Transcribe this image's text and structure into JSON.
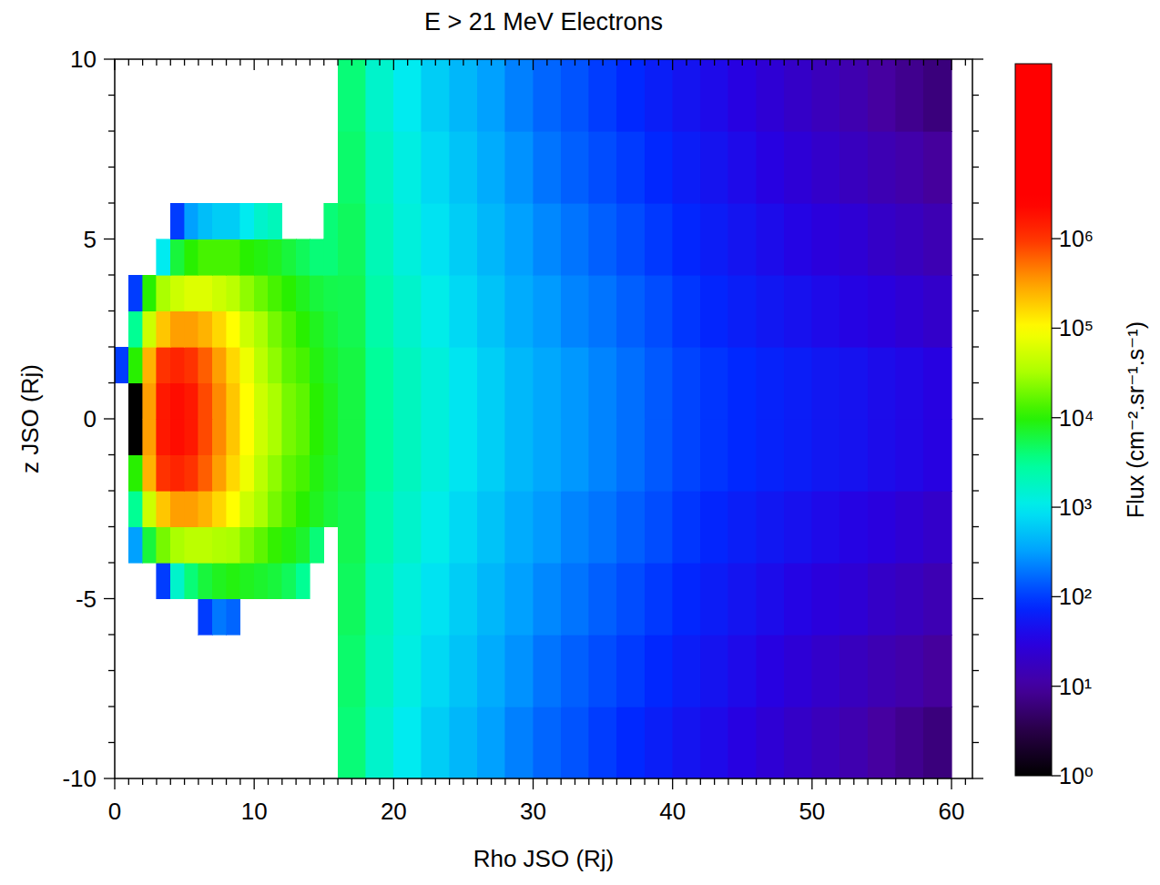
{
  "chart_data": {
    "type": "heatmap",
    "title": "E > 21 MeV Electrons",
    "x_label": "Rho JSO (Rj)",
    "y_label": "z JSO (Rj)",
    "xlim": [
      0,
      61.5
    ],
    "ylim": [
      -10,
      10
    ],
    "xticks": [
      0,
      10,
      20,
      30,
      40,
      50,
      60
    ],
    "yticks": [
      -10,
      -5,
      0,
      5,
      10
    ],
    "x_minor_ticks": [
      1,
      2,
      3,
      4,
      5,
      6,
      7,
      8,
      9,
      11,
      12,
      13,
      14,
      15,
      16,
      17,
      18,
      19,
      21,
      22,
      23,
      24,
      25,
      26,
      27,
      28,
      29,
      31,
      32,
      33,
      34,
      35,
      36,
      37,
      38,
      39,
      41,
      42,
      43,
      44,
      45,
      46,
      47,
      48,
      49,
      51,
      52,
      53,
      54,
      55,
      56,
      57,
      58,
      59,
      61
    ],
    "y_minor_ticks": [
      -9,
      -8,
      -7,
      -6,
      -4,
      -3,
      -2,
      -1,
      1,
      2,
      3,
      4,
      6,
      7,
      8,
      9
    ],
    "colorbar": {
      "label": "Flux (cm⁻².sr⁻¹.s⁻¹)",
      "range": [
        1,
        90000000
      ],
      "log": true,
      "ticks": [
        {
          "value": 1,
          "label": "10⁰"
        },
        {
          "value": 10,
          "label": "10¹"
        },
        {
          "value": 100,
          "label": "10²"
        },
        {
          "value": 1000,
          "label": "10³"
        },
        {
          "value": 10000,
          "label": "10⁴"
        },
        {
          "value": 100000,
          "label": "10⁵"
        },
        {
          "value": 1000000,
          "label": "10⁶"
        }
      ]
    },
    "grids": [
      {
        "x_edges": [
          0,
          1,
          2,
          3,
          4,
          5,
          6,
          7,
          8,
          9,
          10,
          11,
          12,
          13,
          14,
          15,
          16
        ],
        "y_edges": [
          -6,
          -5,
          -4,
          -3,
          -2,
          -1,
          0,
          1,
          2,
          3,
          4,
          5,
          6
        ],
        "cells": [
          [
            null,
            null,
            null,
            null,
            null,
            null,
            100,
            200,
            160,
            null,
            null,
            null,
            null,
            null,
            null,
            null
          ],
          [
            null,
            null,
            null,
            100,
            1600,
            4000,
            6300,
            7900,
            8900,
            7900,
            7100,
            6300,
            5000,
            3200,
            null,
            null
          ],
          [
            null,
            320,
            6300,
            20000,
            32000,
            40000,
            40000,
            35000,
            32000,
            22000,
            16000,
            11000,
            8900,
            7100,
            4000,
            null
          ],
          [
            null,
            3200,
            50000,
            200000,
            320000,
            320000,
            250000,
            160000,
            100000,
            50000,
            32000,
            20000,
            14000,
            10000,
            7900,
            6300
          ],
          [
            null,
            10000,
            250000,
            1000000,
            1300000,
            1000000,
            630000,
            320000,
            160000,
            79000,
            40000,
            25000,
            16000,
            13000,
            8900,
            7100
          ],
          [
            null,
            1,
            320000,
            1600000,
            2000000,
            1600000,
            790000,
            400000,
            200000,
            100000,
            50000,
            32000,
            20000,
            16000,
            10000,
            7900
          ],
          [
            null,
            1,
            320000,
            1600000,
            2000000,
            1600000,
            790000,
            400000,
            200000,
            100000,
            50000,
            32000,
            20000,
            16000,
            10000,
            7900
          ],
          [
            100,
            10000,
            250000,
            1000000,
            1300000,
            1000000,
            630000,
            320000,
            160000,
            79000,
            40000,
            25000,
            16000,
            13000,
            8900,
            7100
          ],
          [
            null,
            3200,
            50000,
            200000,
            320000,
            320000,
            250000,
            160000,
            100000,
            50000,
            32000,
            20000,
            14000,
            10000,
            7900,
            6300
          ],
          [
            null,
            100,
            10000,
            32000,
            50000,
            63000,
            63000,
            50000,
            40000,
            25000,
            18000,
            13000,
            10000,
            7900,
            6300,
            5600
          ],
          [
            null,
            null,
            null,
            1000,
            6300,
            10000,
            13000,
            13000,
            13000,
            10000,
            8900,
            7900,
            6300,
            5000,
            4000,
            4000
          ],
          [
            null,
            null,
            null,
            null,
            100,
            320,
            500,
            630,
            630,
            1000,
            1600,
            2000,
            null,
            null,
            null,
            4000
          ]
        ]
      },
      {
        "x_edges": [
          16,
          18,
          20,
          22,
          24,
          26,
          28,
          30,
          32,
          34,
          36,
          38,
          40,
          42,
          44,
          46,
          48,
          50,
          52,
          54,
          56,
          58,
          60
        ],
        "y_edges": [
          -10,
          -8,
          -6,
          -4,
          -2,
          0,
          2,
          4,
          6,
          8,
          10
        ],
        "cells": [
          [
            4000,
            1600,
            1000,
            630,
            450,
            320,
            220,
            160,
            130,
            100,
            79,
            63,
            50,
            40,
            32,
            25,
            20,
            16,
            13,
            10,
            7.9,
            6.3
          ],
          [
            4400,
            1900,
            1200,
            760,
            540,
            380,
            270,
            190,
            150,
            120,
            98,
            78,
            62,
            49,
            40,
            32,
            26,
            21,
            17,
            14,
            12,
            9.5
          ],
          [
            4900,
            2100,
            1300,
            890,
            630,
            450,
            320,
            240,
            190,
            150,
            120,
            95,
            76,
            60,
            50,
            42,
            35,
            29,
            25,
            20,
            17,
            14
          ],
          [
            5400,
            2500,
            1600,
            1100,
            760,
            540,
            380,
            300,
            230,
            190,
            150,
            120,
            93,
            74,
            63,
            54,
            47,
            40,
            34,
            30,
            25,
            21
          ],
          [
            6000,
            3000,
            1900,
            1300,
            910,
            650,
            460,
            360,
            290,
            230,
            180,
            140,
            110,
            91,
            79,
            69,
            62,
            54,
            48,
            42,
            37,
            32
          ],
          [
            6000,
            3000,
            1900,
            1300,
            910,
            650,
            460,
            360,
            290,
            230,
            180,
            140,
            110,
            91,
            79,
            69,
            62,
            54,
            48,
            42,
            37,
            32
          ],
          [
            5400,
            2500,
            1600,
            1100,
            760,
            540,
            380,
            300,
            230,
            190,
            150,
            120,
            93,
            74,
            63,
            54,
            47,
            40,
            34,
            30,
            25,
            21
          ],
          [
            4900,
            2100,
            1300,
            890,
            630,
            450,
            320,
            240,
            190,
            150,
            120,
            95,
            76,
            60,
            50,
            42,
            35,
            29,
            25,
            20,
            17,
            14
          ],
          [
            4400,
            1900,
            1200,
            760,
            540,
            380,
            270,
            190,
            150,
            120,
            98,
            78,
            62,
            49,
            40,
            32,
            26,
            21,
            17,
            14,
            12,
            9.5
          ],
          [
            4000,
            1600,
            1000,
            630,
            450,
            320,
            220,
            160,
            130,
            100,
            79,
            63,
            50,
            40,
            32,
            25,
            20,
            16,
            13,
            10,
            7.9,
            6.3
          ]
        ]
      }
    ]
  }
}
